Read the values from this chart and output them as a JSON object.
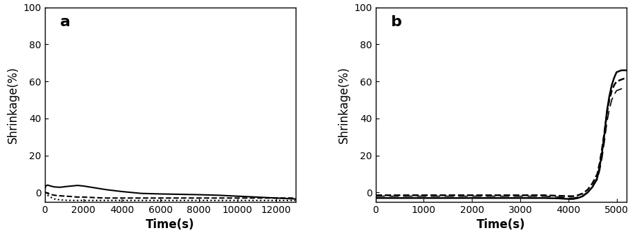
{
  "panel_a": {
    "label": "a",
    "xlabel": "Time(s)",
    "ylabel": "Shrinkage(%)",
    "xlim": [
      0,
      13000
    ],
    "ylim": [
      -5,
      100
    ],
    "yticks": [
      0,
      20,
      40,
      60,
      80,
      100
    ],
    "xticks": [
      0,
      2000,
      4000,
      6000,
      8000,
      10000,
      12000
    ],
    "lines": [
      {
        "style": "solid",
        "color": "#000000",
        "linewidth": 1.5,
        "x": [
          0,
          50,
          150,
          300,
          500,
          800,
          1100,
          1400,
          1700,
          2000,
          2300,
          2600,
          2900,
          3200,
          3600,
          4000,
          4500,
          5000,
          6000,
          7000,
          8000,
          9000,
          10000,
          11000,
          12000,
          13000
        ],
        "y": [
          1.5,
          3.5,
          4.0,
          3.5,
          3.0,
          2.8,
          3.2,
          3.5,
          3.8,
          3.5,
          3.0,
          2.5,
          2.0,
          1.5,
          1.0,
          0.5,
          0.0,
          -0.5,
          -0.8,
          -1.0,
          -1.2,
          -1.5,
          -2.0,
          -2.5,
          -3.0,
          -3.5
        ]
      },
      {
        "style": "dashed",
        "color": "#000000",
        "linewidth": 1.5,
        "x": [
          0,
          50,
          150,
          300,
          500,
          800,
          1100,
          1400,
          1700,
          2000,
          2300,
          2600,
          2900,
          3200,
          3600,
          4000,
          4500,
          5000,
          6000,
          7000,
          8000,
          9000,
          10000,
          11000,
          12000,
          13000
        ],
        "y": [
          0.5,
          0.0,
          -0.5,
          -1.0,
          -1.5,
          -1.8,
          -2.0,
          -2.2,
          -2.5,
          -2.5,
          -2.6,
          -2.8,
          -2.9,
          -3.0,
          -3.0,
          -3.0,
          -3.0,
          -3.0,
          -3.0,
          -3.0,
          -3.0,
          -3.0,
          -3.0,
          -3.0,
          -3.0,
          -3.0
        ]
      },
      {
        "style": "dotted",
        "color": "#000000",
        "linewidth": 1.5,
        "x": [
          0,
          50,
          150,
          300,
          500,
          800,
          1100,
          1400,
          1700,
          2000,
          2300,
          2600,
          2900,
          3200,
          3600,
          4000,
          4500,
          5000,
          6000,
          7000,
          8000,
          9000,
          10000,
          11000,
          12000,
          13000
        ],
        "y": [
          0.0,
          -0.5,
          -1.5,
          -2.5,
          -3.5,
          -4.0,
          -4.2,
          -4.3,
          -4.3,
          -4.3,
          -4.3,
          -4.3,
          -4.3,
          -4.3,
          -4.3,
          -4.3,
          -4.3,
          -4.3,
          -4.3,
          -4.3,
          -4.3,
          -4.3,
          -4.3,
          -4.3,
          -4.3,
          -4.3
        ]
      }
    ]
  },
  "panel_b": {
    "label": "b",
    "xlabel": "Time(s)",
    "ylabel": "Shrinkage(%)",
    "xlim": [
      0,
      5200
    ],
    "ylim": [
      -5,
      100
    ],
    "yticks": [
      0,
      20,
      40,
      60,
      80,
      100
    ],
    "xticks": [
      0,
      1000,
      2000,
      3000,
      4000,
      5000
    ],
    "lines": [
      {
        "style": "solid",
        "color": "#000000",
        "linewidth": 1.8,
        "x": [
          0,
          200,
          500,
          1000,
          1500,
          2000,
          2500,
          3000,
          3500,
          3800,
          4000,
          4100,
          4200,
          4300,
          4400,
          4500,
          4600,
          4650,
          4700,
          4750,
          4800,
          4850,
          4900,
          4950,
          5000,
          5100,
          5200
        ],
        "y": [
          -3,
          -3,
          -3,
          -3,
          -3,
          -3,
          -3,
          -3,
          -3,
          -3.2,
          -3.5,
          -3.5,
          -3.0,
          -2.0,
          0,
          3,
          8,
          14,
          22,
          32,
          44,
          52,
          58,
          62,
          65,
          66,
          66
        ]
      },
      {
        "style": "dashed",
        "color": "#000000",
        "linewidth": 1.8,
        "x": [
          0,
          200,
          500,
          1000,
          1500,
          2000,
          2500,
          3000,
          3500,
          3800,
          4000,
          4100,
          4200,
          4300,
          4400,
          4500,
          4600,
          4650,
          4700,
          4750,
          4800,
          4850,
          4900,
          4950,
          5000,
          5100,
          5200
        ],
        "y": [
          -1.5,
          -1.5,
          -1.5,
          -1.5,
          -1.5,
          -1.5,
          -1.5,
          -1.5,
          -1.5,
          -1.8,
          -2.0,
          -2.0,
          -1.5,
          -0.5,
          1.5,
          5,
          10,
          16,
          24,
          33,
          43,
          50,
          55,
          58,
          60,
          61,
          62
        ]
      },
      {
        "style": "dashed",
        "color": "#000000",
        "linewidth": 1.2,
        "dashes": [
          8,
          4
        ],
        "x": [
          0,
          200,
          500,
          1000,
          1500,
          2000,
          2500,
          3000,
          3500,
          3800,
          4000,
          4100,
          4200,
          4300,
          4400,
          4500,
          4600,
          4650,
          4700,
          4750,
          4800,
          4850,
          4900,
          4950,
          5000,
          5100,
          5200
        ],
        "y": [
          -2,
          -2,
          -2,
          -2,
          -2,
          -2,
          -2,
          -2,
          -2,
          -2.5,
          -3,
          -3,
          -2.5,
          -1.5,
          0,
          3,
          7,
          12,
          19,
          28,
          38,
          45,
          50,
          53,
          55,
          56,
          57
        ]
      }
    ]
  },
  "background_color": "#ffffff",
  "label_fontsize": 12,
  "tick_fontsize": 10,
  "panel_label_fontsize": 16
}
